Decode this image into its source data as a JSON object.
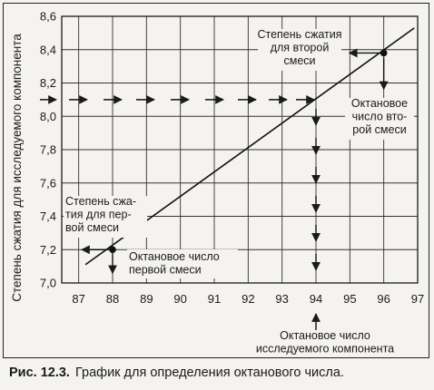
{
  "chart_data": {
    "type": "line",
    "xlim": [
      86.5,
      97
    ],
    "ylim": [
      7.0,
      8.6
    ],
    "x_ticks": [
      87,
      88,
      89,
      90,
      91,
      92,
      93,
      94,
      95,
      96,
      97
    ],
    "y_ticks": [
      "7,0",
      "7,2",
      "7,4",
      "7,6",
      "7,8",
      "8,0",
      "8,2",
      "8,4",
      "8,6"
    ],
    "y_tick_values": [
      7.0,
      7.2,
      7.4,
      7.6,
      7.8,
      8.0,
      8.2,
      8.4,
      8.6
    ],
    "ylabel": "Степень сжатия для исследуемого компонента",
    "grid": true,
    "series": [
      {
        "x": [
          87.2,
          96.9
        ],
        "y": [
          7.11,
          8.53
        ]
      }
    ],
    "points": [
      {
        "x": 88,
        "y": 7.2
      },
      {
        "x": 96,
        "y": 8.38
      }
    ],
    "test_point": {
      "x": 94,
      "y": 8.1
    },
    "annotations": {
      "first_ratio": [
        "Степень сжа-",
        "тия для пер-",
        "вой смеси"
      ],
      "first_octane": [
        "Октановое число",
        "первой смеси"
      ],
      "second_ratio": [
        "Степень сжатия",
        "для второй",
        "смеси"
      ],
      "second_octane": [
        "Октановое",
        "число вто-",
        "рой смеси"
      ],
      "test_octane": [
        "Октановое число",
        "исследуемого компонента"
      ]
    }
  },
  "caption": {
    "number": "Рис. 12.3.",
    "text": "График для определения октанового числа."
  }
}
